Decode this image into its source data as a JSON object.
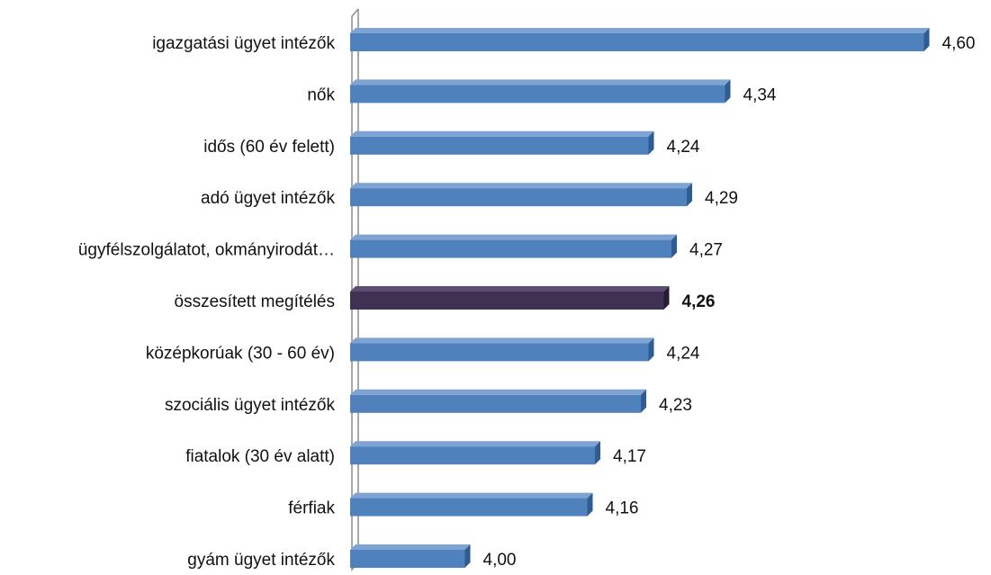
{
  "chart_data": {
    "type": "bar",
    "orientation": "horizontal",
    "style": "3d",
    "categories": [
      "igazgatási ügyet intézők",
      "nők",
      "idős (60 év felett)",
      "adó ügyet intézők",
      "ügyfélszolgálatot, okmányirodát…",
      "összesített megítélés",
      "középkorúak (30 - 60 év)",
      "szociális ügyet intézők",
      "fiatalok (30 év alatt)",
      "férfiak",
      "gyám ügyet intézők"
    ],
    "values": [
      4.6,
      4.34,
      4.24,
      4.29,
      4.27,
      4.26,
      4.24,
      4.23,
      4.17,
      4.16,
      4.0
    ],
    "value_labels": [
      "4,60",
      "4,34",
      "4,24",
      "4,29",
      "4,27",
      "4,26",
      "4,24",
      "4,23",
      "4,17",
      "4,16",
      "4,00"
    ],
    "highlight_index": 5,
    "xlim": [
      3.85,
      4.6
    ],
    "grid": false,
    "legend": "none",
    "colors": {
      "bar": "#4F81BD",
      "bar_top": "#7FA3D2",
      "bar_side": "#2F5C91",
      "highlight": "#3F3151",
      "highlight_top": "#5E4C73",
      "highlight_side": "#261D33",
      "axis": "#8C8C8C"
    }
  }
}
